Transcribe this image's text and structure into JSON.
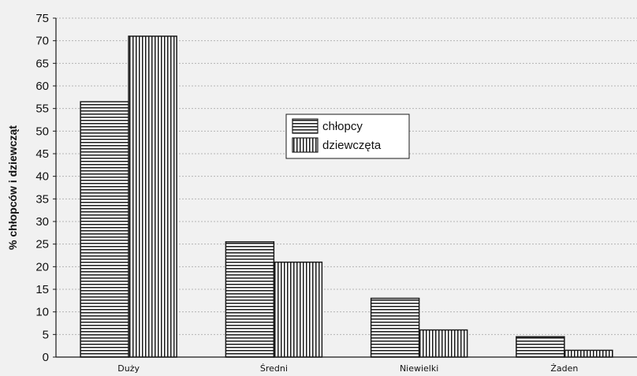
{
  "chart_data": {
    "type": "bar",
    "title": "",
    "xlabel": "",
    "ylabel": "% chłopców i dziewcząt",
    "categories": [
      "Duży",
      "Średni",
      "Niewielki",
      "Żaden"
    ],
    "series": [
      {
        "name": "chłopcy",
        "values": [
          56.5,
          25.5,
          13,
          4.5
        ],
        "pattern": "horizontal"
      },
      {
        "name": "dziewczęta",
        "values": [
          71,
          21,
          6,
          1.5
        ],
        "pattern": "vertical"
      }
    ],
    "ylim": [
      0,
      75
    ],
    "yticks": [
      0,
      5,
      10,
      15,
      20,
      25,
      30,
      35,
      40,
      45,
      50,
      55,
      60,
      65,
      70,
      75
    ],
    "grid": "horizontal dashed",
    "legend": "center-right"
  },
  "colors": {
    "background": "#f1f1f1",
    "bar_fill": "#ffffff",
    "stroke": "#1a1a1a",
    "grid": "#b5b5b5"
  }
}
